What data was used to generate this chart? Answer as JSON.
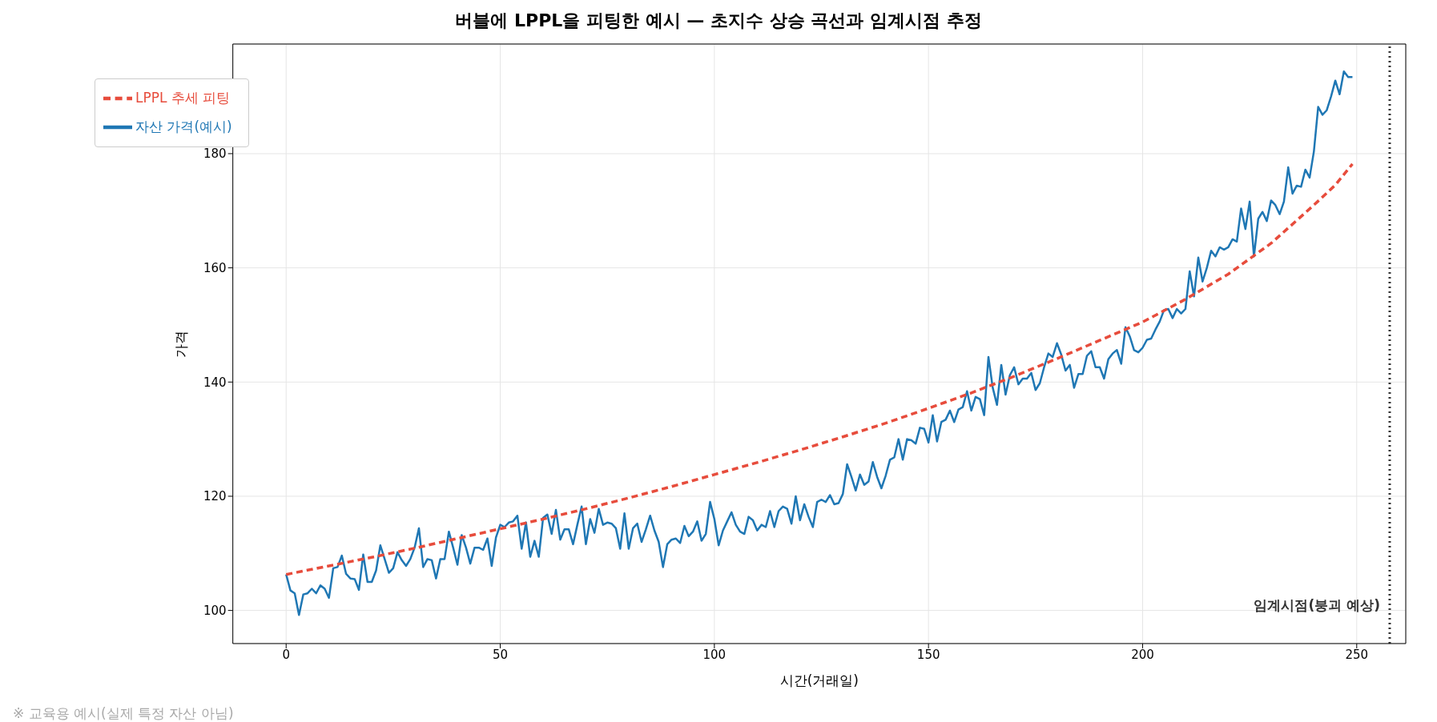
{
  "chart_data": {
    "type": "line",
    "title": "버블에 LPPL을 피팅한 예시 — 초지수 상승 곡선과 임계시점 추정",
    "xlabel": "시간(거래일)",
    "ylabel": "가격",
    "annotations": [
      "※ 교육용 예시(실제 특정 자산 아님)"
    ],
    "xlim": [
      -12.45,
      261.45
    ],
    "xticks": [
      0,
      50,
      100,
      150,
      200,
      250
    ],
    "ylim": [
      94.2,
      199.2
    ],
    "yticks": [
      100,
      120,
      140,
      160,
      180
    ],
    "grid": true,
    "legend": "top left",
    "series": [
      {
        "name": "자산 가격(예시)",
        "color": "#1f77b4",
        "line_style": "solid",
        "x": [
          0,
          1,
          2,
          3,
          4,
          5,
          6,
          7,
          8,
          9,
          10,
          11,
          12,
          13,
          14,
          15,
          16,
          17,
          18,
          19,
          20,
          21,
          22,
          23,
          24,
          25,
          26,
          27,
          28,
          29,
          30,
          31,
          32,
          33,
          34,
          35,
          36,
          37,
          38,
          39,
          40,
          41,
          42,
          43,
          44,
          45,
          46,
          47,
          48,
          49,
          50,
          51,
          52,
          53,
          54,
          55,
          56,
          57,
          58,
          59,
          60,
          61,
          62,
          63,
          64,
          65,
          66,
          67,
          68,
          69,
          70,
          71,
          72,
          73,
          74,
          75,
          76,
          77,
          78,
          79,
          80,
          81,
          82,
          83,
          84,
          85,
          86,
          87,
          88,
          89,
          90,
          91,
          92,
          93,
          94,
          95,
          96,
          97,
          98,
          99,
          100,
          101,
          102,
          103,
          104,
          105,
          106,
          107,
          108,
          109,
          110,
          111,
          112,
          113,
          114,
          115,
          116,
          117,
          118,
          119,
          120,
          121,
          122,
          123,
          124,
          125,
          126,
          127,
          128,
          129,
          130,
          131,
          132,
          133,
          134,
          135,
          136,
          137,
          138,
          139,
          140,
          141,
          142,
          143,
          144,
          145,
          146,
          147,
          148,
          149,
          150,
          151,
          152,
          153,
          154,
          155,
          156,
          157,
          158,
          159,
          160,
          161,
          162,
          163,
          164,
          165,
          166,
          167,
          168,
          169,
          170,
          171,
          172,
          173,
          174,
          175,
          176,
          177,
          178,
          179,
          180,
          181,
          182,
          183,
          184,
          185,
          186,
          187,
          188,
          189,
          190,
          191,
          192,
          193,
          194,
          195,
          196,
          197,
          198,
          199,
          200,
          201,
          202,
          203,
          204,
          205,
          206,
          207,
          208,
          209,
          210,
          211,
          212,
          213,
          214,
          215,
          216,
          217,
          218,
          219,
          220,
          221,
          222,
          223,
          224,
          225,
          226,
          227,
          228,
          229,
          230,
          231,
          232,
          233,
          234,
          235,
          236,
          237,
          238,
          239,
          240,
          241,
          242,
          243,
          244,
          245,
          246,
          247,
          248,
          249
        ],
        "values": [
          106.3,
          103.5,
          103,
          99.2,
          102.8,
          103,
          103.8,
          103,
          104.4,
          103.8,
          102.2,
          107.4,
          107.6,
          109.6,
          106.4,
          105.6,
          105.5,
          103.6,
          109.8,
          105,
          105,
          107,
          111.4,
          109,
          106.6,
          107.4,
          110.2,
          108.8,
          107.8,
          109,
          111,
          114.4,
          107.6,
          109,
          108.8,
          105.6,
          109,
          109,
          113.8,
          111,
          108,
          113.2,
          111,
          108.2,
          111,
          111,
          110.6,
          112.6,
          107.8,
          112.8,
          115,
          114.6,
          115.4,
          115.6,
          116.6,
          110.8,
          115.4,
          109.4,
          112.2,
          109.4,
          116.2,
          116.8,
          113.4,
          117.6,
          112.4,
          114.2,
          114.2,
          111.6,
          115,
          118.2,
          111.6,
          116,
          113.6,
          117.8,
          115,
          115.4,
          115.2,
          114.4,
          110.8,
          117,
          110.8,
          114.4,
          115.2,
          112,
          114.2,
          116.6,
          114,
          112,
          107.6,
          111.6,
          112.4,
          112.6,
          111.8,
          114.8,
          113,
          113.8,
          115.6,
          112.2,
          113.4,
          119,
          116,
          111.4,
          114,
          115.6,
          117.2,
          115,
          113.8,
          113.4,
          116.4,
          115.8,
          114,
          115,
          114.6,
          117.4,
          114.6,
          117.4,
          118.2,
          117.8,
          115.2,
          120,
          115.8,
          118.6,
          116.4,
          114.6,
          119,
          119.4,
          119,
          120.2,
          118.6,
          118.8,
          120.4,
          125.6,
          123.4,
          121,
          123.8,
          122,
          122.6,
          126,
          123.4,
          121.4,
          123.6,
          126.4,
          126.8,
          130,
          126.4,
          130,
          129.8,
          129.2,
          132,
          131.8,
          129.4,
          134.2,
          129.6,
          133,
          133.4,
          135,
          133,
          135.2,
          135.6,
          138.4,
          135,
          137.4,
          137,
          134.2,
          144.4,
          139,
          136,
          143,
          137.8,
          141.2,
          142.6,
          139.6,
          140.6,
          140.6,
          141.6,
          138.6,
          139.8,
          142.6,
          145,
          144.4,
          146.8,
          144.8,
          142,
          143,
          139,
          141.4,
          141.4,
          144.6,
          145.4,
          142.6,
          142.6,
          140.6,
          144,
          145,
          145.6,
          143.2,
          149.6,
          148,
          145.6,
          145.2,
          146,
          147.4,
          147.6,
          149.2,
          150.6,
          152.6,
          152.8,
          151.2,
          152.8,
          152,
          152.8,
          159.4,
          155,
          161.8,
          157.6,
          160,
          163,
          162,
          163.6,
          163.2,
          163.6,
          165,
          164.6,
          170.4,
          166.8,
          171.6,
          162,
          168.6,
          169.8,
          168.2,
          171.8,
          171,
          169.4,
          171.6,
          177.6,
          173,
          174.4,
          174.2,
          177.2,
          175.8,
          180.4,
          188.2,
          186.8,
          187.6,
          190,
          192.8,
          190.4,
          194.4,
          193.4,
          193.4
        ]
      },
      {
        "name": "LPPL 추세 피팅",
        "color": "#e74c3c",
        "line_style": "dashed",
        "x": [
          0,
          10,
          20,
          30,
          40,
          50,
          60,
          70,
          80,
          90,
          100,
          110,
          120,
          130,
          140,
          150,
          160,
          170,
          180,
          190,
          200,
          210,
          220,
          230,
          240,
          245,
          249
        ],
        "values": [
          106.3,
          107.8,
          109.3,
          110.9,
          112.6,
          114.3,
          116,
          117.8,
          119.7,
          121.7,
          123.8,
          125.9,
          128.1,
          130.4,
          132.8,
          135.4,
          138.1,
          141,
          144.1,
          147.3,
          150.5,
          154.5,
          158.9,
          164.3,
          171,
          174.5,
          178.2
        ]
      }
    ],
    "ref_lines": [
      {
        "axis": "x",
        "value": 257.7,
        "label": "임계시점(붕괴 예상)",
        "color": "#333333",
        "line_style": "dotted"
      }
    ]
  }
}
